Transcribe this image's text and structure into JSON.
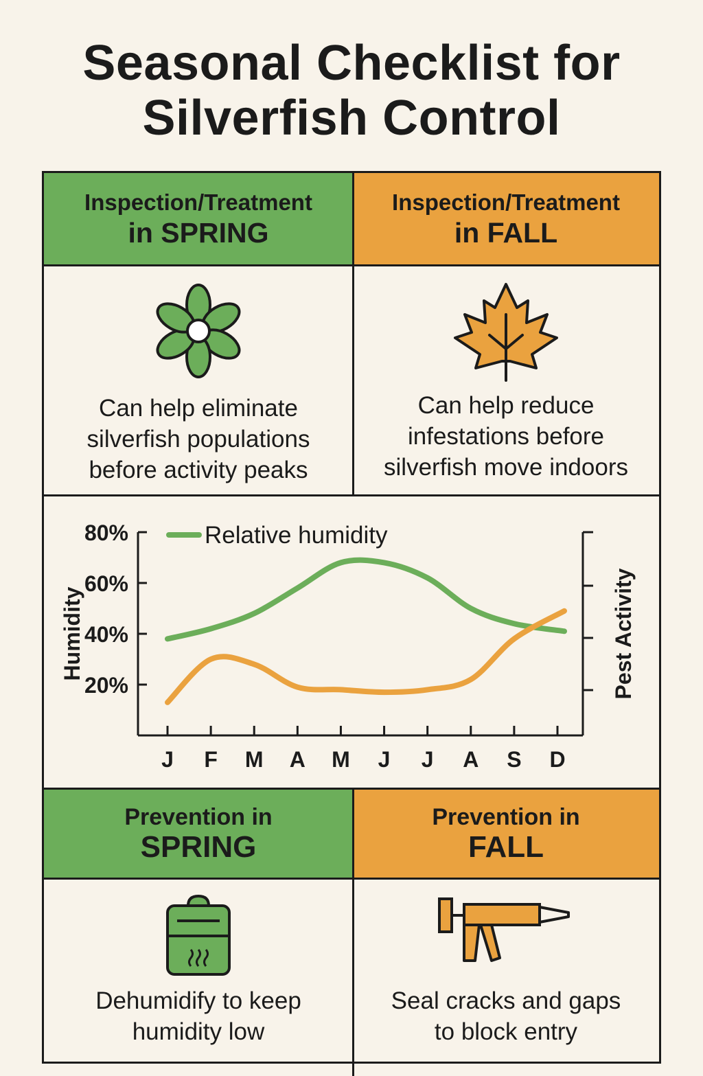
{
  "title": {
    "line1": "Seasonal Checklist for",
    "line2": "Silverfish Control"
  },
  "colors": {
    "spring": "#6cae5a",
    "fall": "#eaa23f",
    "background": "#f8f3ea",
    "ink": "#1b1b1b"
  },
  "inspection": {
    "spring": {
      "line1": "Inspection/Treatment",
      "line2": "in SPRING",
      "icon": "flower-icon",
      "desc": [
        "Can help eliminate",
        "silverfish populations",
        "before activity peaks"
      ]
    },
    "fall": {
      "line1": "Inspection/Treatment",
      "line2": "in FALL",
      "icon": "maple-leaf-icon",
      "desc": [
        "Can help reduce",
        "infestations before",
        "silverfish move indoors"
      ]
    }
  },
  "chart_data": {
    "type": "line",
    "legend": "Relative humidity",
    "ylabel_left": "Humidity",
    "ylabel_right": "Pest Activity",
    "y_ticks": [
      "80%",
      "60%",
      "40%",
      "20%"
    ],
    "y_tick_values": [
      80,
      60,
      40,
      20
    ],
    "ylim": [
      0,
      80
    ],
    "categories": [
      "J",
      "F",
      "M",
      "A",
      "M",
      "J",
      "J",
      "A",
      "S",
      "D"
    ],
    "series": [
      {
        "name": "Relative humidity",
        "color": "#6cae5a",
        "values": [
          38,
          42,
          48,
          58,
          68,
          68,
          62,
          50,
          44,
          41
        ]
      },
      {
        "name": "Pest Activity",
        "color": "#eaa23f",
        "values": [
          13,
          30,
          28,
          19,
          18,
          17,
          18,
          22,
          38,
          49
        ]
      }
    ]
  },
  "prevention": {
    "spring": {
      "line1": "Prevention in",
      "line2": "SPRING",
      "icon": "dehumidifier-icon",
      "desc": [
        "Dehumidify to keep",
        "humidity low"
      ]
    },
    "fall": {
      "line1": "Prevention in",
      "line2": "FALL",
      "icon": "caulk-gun-icon",
      "desc": [
        "Seal cracks and gaps",
        "to block entry"
      ]
    }
  }
}
